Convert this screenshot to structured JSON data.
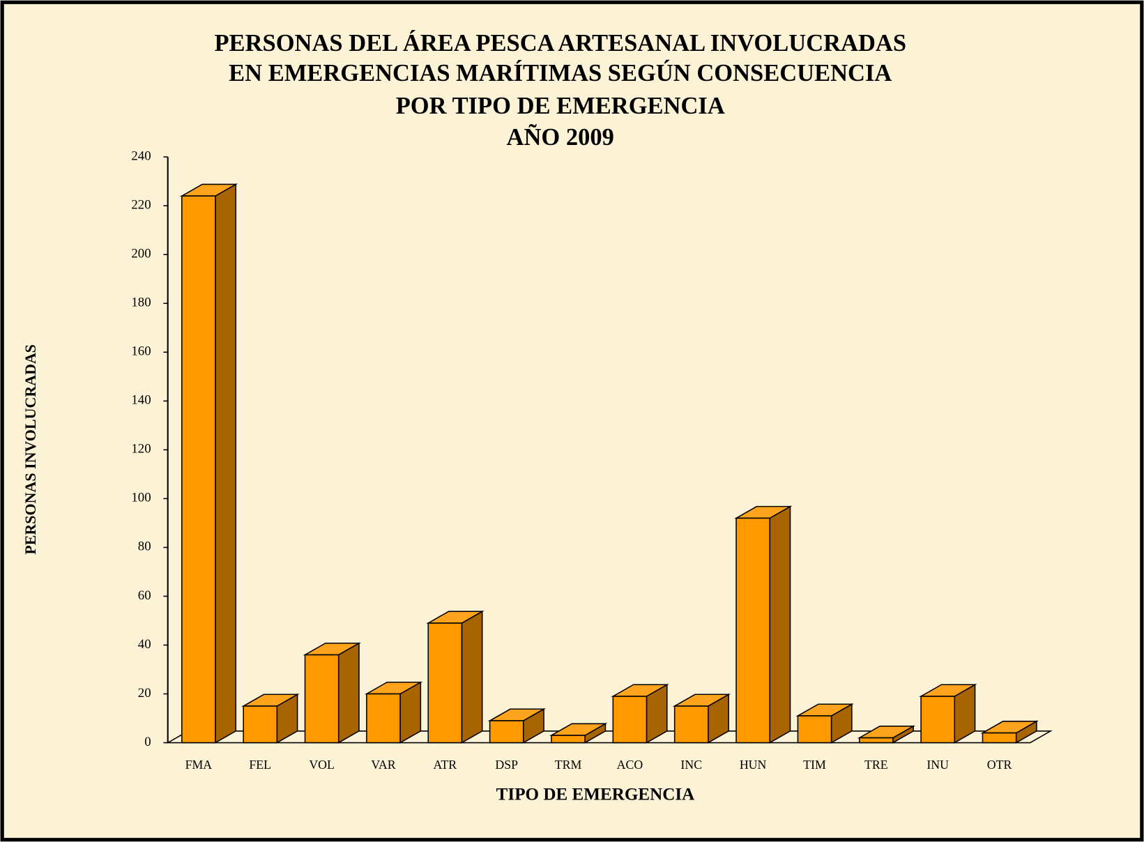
{
  "chart_data": {
    "type": "bar3d",
    "title": [
      "PERSONAS DEL ÁREA PESCA ARTESANAL INVOLUCRADAS",
      "EN EMERGENCIAS MARÍTIMAS  SEGÚN CONSECUENCIA",
      "POR TIPO DE EMERGENCIA",
      "AÑO 2009"
    ],
    "x_label": "TIPO DE EMERGENCIA",
    "y_label": "PERSONAS INVOLUCRADAS",
    "categories": [
      "FMA",
      "FEL",
      "VOL",
      "VAR",
      "ATR",
      "DSP",
      "TRM",
      "ACO",
      "INC",
      "HUN",
      "TIM",
      "TRE",
      "INU",
      "OTR"
    ],
    "values": [
      224,
      15,
      36,
      20,
      49,
      9,
      3,
      19,
      15,
      92,
      11,
      2,
      19,
      4
    ],
    "color": "#ff9900",
    "ylim": [
      0,
      240
    ],
    "yticks": [
      0,
      20,
      40,
      60,
      80,
      100,
      120,
      140,
      160,
      180,
      200,
      220,
      240
    ],
    "grid": false
  }
}
